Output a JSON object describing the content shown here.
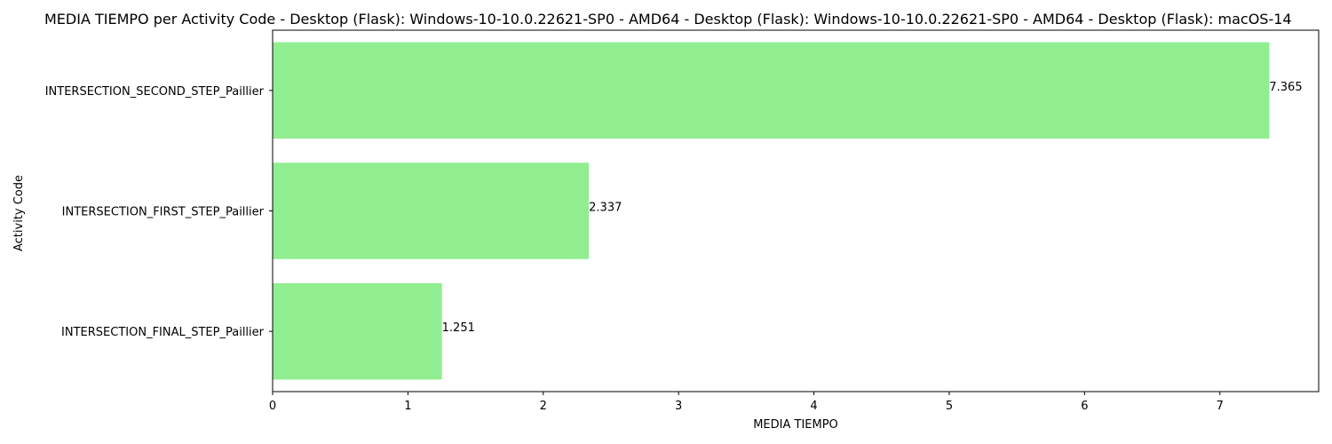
{
  "chart_data": {
    "type": "bar",
    "orientation": "horizontal",
    "title": "MEDIA TIEMPO per Activity Code - Desktop (Flask): Windows-10-10.0.22621-SP0 - AMD64 - Desktop (Flask): Windows-10-10.0.22621-SP0 - AMD64 - Desktop (Flask): macOS-14",
    "xlabel": "MEDIA TIEMPO",
    "ylabel": "Activity Code",
    "categories": [
      "INTERSECTION_SECOND_STEP_Paillier",
      "INTERSECTION_FIRST_STEP_Paillier",
      "INTERSECTION_FINAL_STEP_Paillier"
    ],
    "values": [
      7.365,
      2.337,
      1.251
    ],
    "value_labels": [
      "7.365",
      "2.337",
      "1.251"
    ],
    "xlim": [
      0,
      7.73
    ],
    "xticks": [
      0,
      1,
      2,
      3,
      4,
      5,
      6,
      7
    ],
    "xtick_labels": [
      "0",
      "1",
      "2",
      "3",
      "4",
      "5",
      "6",
      "7"
    ],
    "grid": false,
    "bar_color": "#90ee90"
  }
}
